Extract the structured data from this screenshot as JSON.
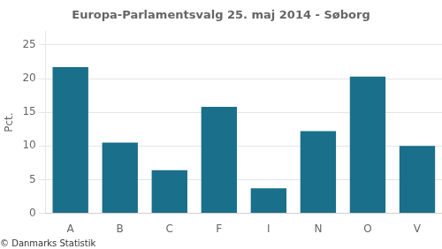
{
  "chart_data": {
    "type": "bar",
    "title": "Europa-Parlamentsvalg 25. maj 2014 - Søborg",
    "ylabel": "Pct.",
    "footer": "© Danmarks Statistik",
    "categories": [
      "A",
      "B",
      "C",
      "F",
      "I",
      "N",
      "O",
      "V"
    ],
    "values": [
      21.7,
      10.5,
      6.4,
      15.8,
      3.7,
      12.2,
      20.3,
      10.0
    ],
    "color": "#1a6f8a",
    "ylim": [
      0,
      27
    ],
    "yticks": [
      0,
      5,
      10,
      15,
      20,
      25
    ],
    "grid": true
  }
}
